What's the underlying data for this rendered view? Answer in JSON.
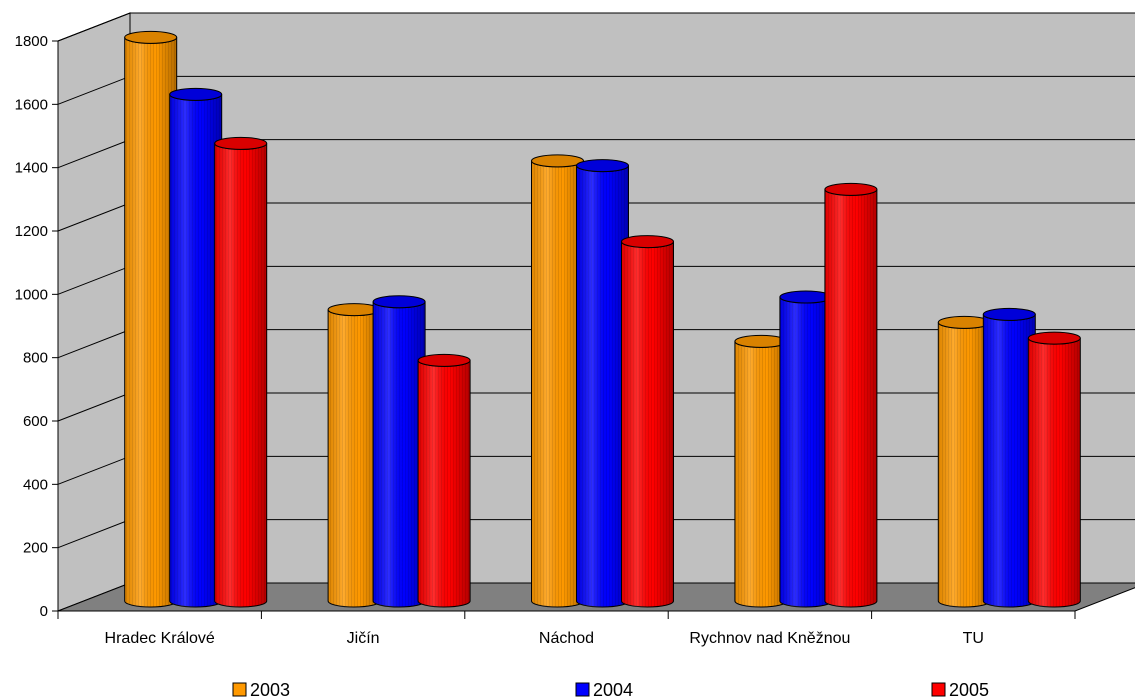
{
  "chart_data": {
    "type": "bar",
    "style": "3d-cylinder",
    "categories": [
      "Hradec Králové",
      "Jičín",
      "Náchod",
      "Rychnov nad Kněžnou",
      "TU"
    ],
    "series": [
      {
        "name": "2003",
        "color": "#ff9900",
        "values": [
          1780,
          920,
          1390,
          820,
          880
        ]
      },
      {
        "name": "2004",
        "color": "#0000ff",
        "values": [
          1600,
          945,
          1375,
          960,
          905
        ]
      },
      {
        "name": "2005",
        "color": "#ff0000",
        "values": [
          1445,
          760,
          1135,
          1300,
          830
        ]
      }
    ],
    "yticks": [
      "0",
      "200",
      "400",
      "600",
      "800",
      "1000",
      "1200",
      "1400",
      "1600",
      "1800"
    ],
    "ylim": [
      0,
      1800
    ],
    "grid": true,
    "legend_position": "bottom",
    "wall_color": "#c0c0c0",
    "floor_color": "#808080"
  }
}
